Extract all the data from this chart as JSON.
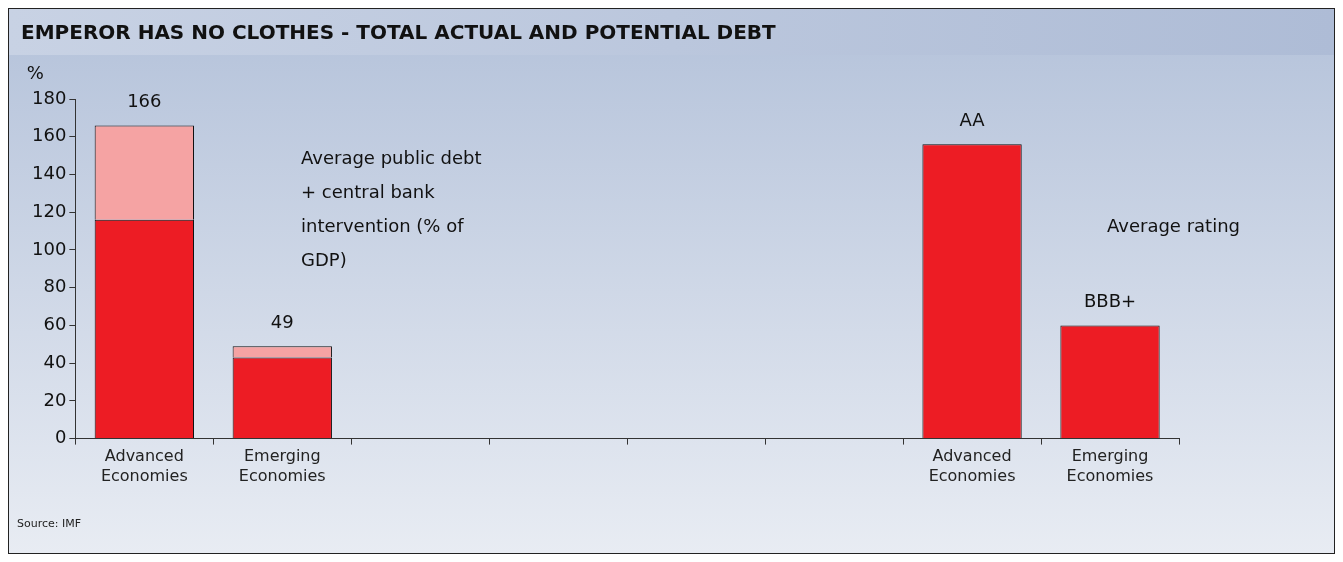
{
  "chart_data": {
    "type": "bar",
    "title": "EMPEROR HAS NO CLOTHES - TOTAL ACTUAL AND POTENTIAL DEBT",
    "ylabel": "%",
    "categories": [
      "Advanced Economies",
      "Emerging Economies",
      null,
      null,
      null,
      null,
      "Advanced Economies",
      "Emerging Economies"
    ],
    "series": [
      {
        "color": "#ed1c24",
        "values": [
          116,
          43,
          null,
          null,
          null,
          null,
          156,
          60
        ]
      },
      {
        "color": "#f5a3a3",
        "values": [
          50,
          6,
          null,
          null,
          null,
          null,
          null,
          null
        ]
      }
    ],
    "stacked": true,
    "totals": [
      "166",
      "49",
      null,
      null,
      null,
      null,
      "AA",
      "BBB+"
    ],
    "ylim": [
      0,
      180
    ],
    "yticks": [
      0,
      20,
      40,
      60,
      80,
      100,
      120,
      140,
      160,
      180
    ],
    "grid": false,
    "legend": false,
    "annotations": [
      "Average public debt + central bank intervention (% of GDP)",
      "Average rating",
      "Source: IMF"
    ]
  }
}
